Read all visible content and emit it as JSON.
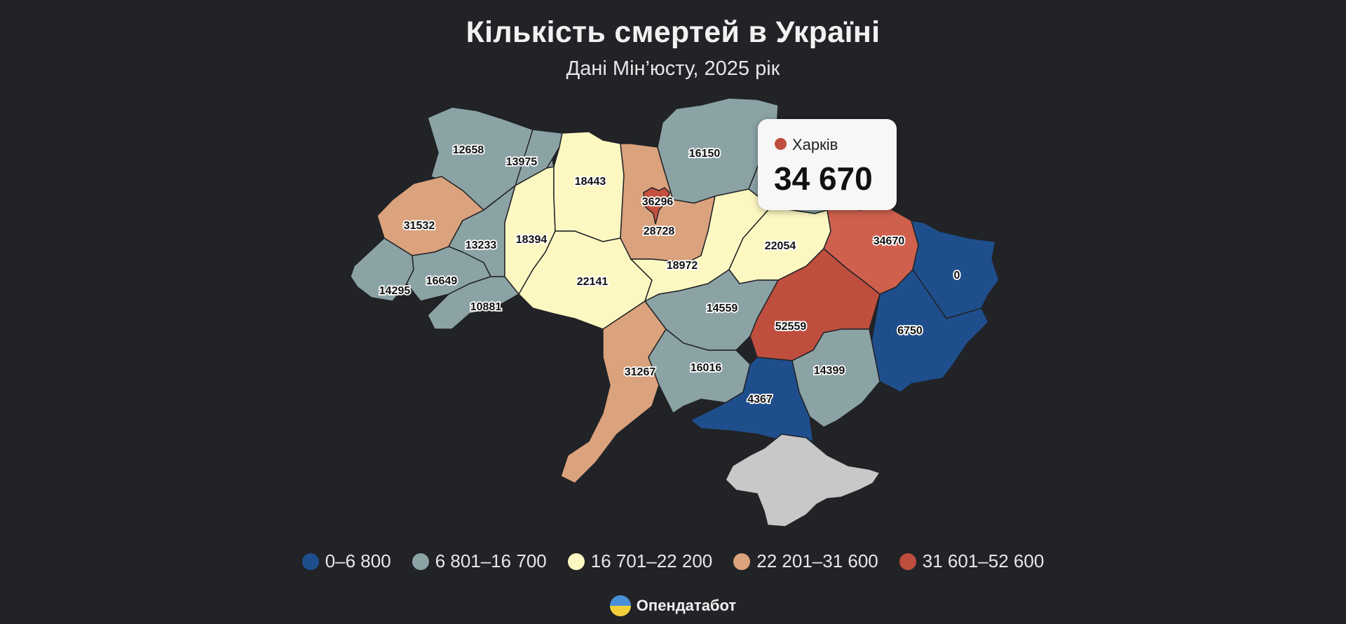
{
  "header": {
    "title": "Кількість смертей в Україні",
    "subtitle": "Дані Мін’юсту, 2025 рік"
  },
  "tooltip": {
    "region": "Харків",
    "value": "34 670",
    "color": "#bf4e3f"
  },
  "legend": [
    {
      "label": "0–6 800",
      "color": "#1f4e8c"
    },
    {
      "label": "6 801–16 700",
      "color": "#8ca3a6"
    },
    {
      "label": "16 701–22 200",
      "color": "#fdf8c2"
    },
    {
      "label": "22 201–31 600",
      "color": "#daa27d"
    },
    {
      "label": "31 601–52 600",
      "color": "#bf4e3f"
    }
  ],
  "regions": [
    {
      "id": "volyn",
      "value": "12658",
      "color": "#8ca3a6"
    },
    {
      "id": "rivne",
      "value": "13975",
      "color": "#8ca3a6"
    },
    {
      "id": "zhytomyr",
      "value": "18443",
      "color": "#fdf8c2"
    },
    {
      "id": "kyiv-oblast",
      "value": "28728",
      "color": "#daa27d"
    },
    {
      "id": "kyiv-city",
      "value": "36296",
      "color": "#c4513f"
    },
    {
      "id": "chernihiv",
      "value": "16150",
      "color": "#8ca3a6"
    },
    {
      "id": "sumy",
      "value": "",
      "color": "#8ca3a6"
    },
    {
      "id": "lviv",
      "value": "31532",
      "color": "#daa27d"
    },
    {
      "id": "ternopil",
      "value": "13233",
      "color": "#8ca3a6"
    },
    {
      "id": "khmelnytskyi",
      "value": "18394",
      "color": "#fdf8c2"
    },
    {
      "id": "zakarpattia",
      "value": "14295",
      "color": "#8ca3a6"
    },
    {
      "id": "ivano-frankivsk",
      "value": "16649",
      "color": "#8ca3a6"
    },
    {
      "id": "chernivtsi",
      "value": "10881",
      "color": "#8ca3a6"
    },
    {
      "id": "vinnytsia",
      "value": "22141",
      "color": "#fdf8c2"
    },
    {
      "id": "cherkasy",
      "value": "18972",
      "color": "#fdf8c2"
    },
    {
      "id": "poltava",
      "value": "22054",
      "color": "#fdf8c2"
    },
    {
      "id": "kharkiv",
      "value": "34670",
      "color": "#d0604e"
    },
    {
      "id": "luhansk",
      "value": "0",
      "color": "#1f4e8c"
    },
    {
      "id": "donetsk",
      "value": "6750",
      "color": "#1f4e8c"
    },
    {
      "id": "dnipropetrovsk",
      "value": "52559",
      "color": "#bf4e3f"
    },
    {
      "id": "kirovohrad",
      "value": "14559",
      "color": "#8ca3a6"
    },
    {
      "id": "odesa",
      "value": "31267",
      "color": "#daa27d"
    },
    {
      "id": "mykolaiv",
      "value": "16016",
      "color": "#8ca3a6"
    },
    {
      "id": "zaporizhzhia",
      "value": "14399",
      "color": "#8ca3a6"
    },
    {
      "id": "kherson",
      "value": "4367",
      "color": "#1f4e8c"
    },
    {
      "id": "crimea",
      "value": "",
      "color": "#c8c8c8"
    }
  ],
  "brand": {
    "name": "Опендатабот"
  }
}
